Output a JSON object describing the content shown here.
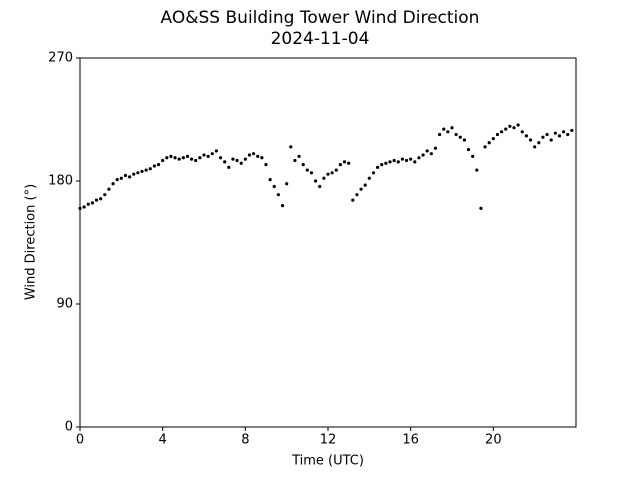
{
  "chart_data": {
    "type": "scatter",
    "title": "AO&SS Building Tower Wind Direction",
    "subtitle": "2024-11-04",
    "x_label": "Time (UTC)",
    "y_label": "Wind Direction (°)",
    "xlim": [
      0,
      24
    ],
    "xticks": [
      0,
      4,
      8,
      12,
      16,
      20
    ],
    "ylim": [
      0,
      270
    ],
    "yticks": [
      0,
      90,
      180,
      270
    ],
    "grid": false,
    "series": [
      {
        "name": "Wind Direction",
        "color": "#000000",
        "x": [
          0,
          0.2,
          0.4,
          0.6,
          0.8,
          1.0,
          1.2,
          1.4,
          1.6,
          1.8,
          2.0,
          2.2,
          2.4,
          2.6,
          2.8,
          3.0,
          3.2,
          3.4,
          3.6,
          3.8,
          4.0,
          4.2,
          4.4,
          4.6,
          4.8,
          5.0,
          5.2,
          5.4,
          5.6,
          5.8,
          6.0,
          6.2,
          6.4,
          6.6,
          6.8,
          7.0,
          7.2,
          7.4,
          7.6,
          7.8,
          8.0,
          8.2,
          8.4,
          8.6,
          8.8,
          9.0,
          9.2,
          9.4,
          9.6,
          9.8,
          10.0,
          10.2,
          10.4,
          10.6,
          10.8,
          11.0,
          11.2,
          11.4,
          11.6,
          11.8,
          12.0,
          12.2,
          12.4,
          12.6,
          12.8,
          13.0,
          13.2,
          13.4,
          13.6,
          13.8,
          14.0,
          14.2,
          14.4,
          14.6,
          14.8,
          15.0,
          15.2,
          15.4,
          15.6,
          15.8,
          16.0,
          16.2,
          16.4,
          16.6,
          16.8,
          17.0,
          17.2,
          17.4,
          17.6,
          17.8,
          18.0,
          18.2,
          18.4,
          18.6,
          18.8,
          19.0,
          19.2,
          19.4,
          19.6,
          19.8,
          20.0,
          20.2,
          20.4,
          20.6,
          20.8,
          21.0,
          21.2,
          21.4,
          21.6,
          21.8,
          22.0,
          22.2,
          22.4,
          22.6,
          22.8,
          23.0,
          23.2,
          23.4,
          23.6,
          23.8
        ],
        "values": [
          160,
          161,
          163,
          164,
          166,
          167,
          170,
          174,
          178,
          181,
          182,
          184,
          183,
          185,
          186,
          187,
          188,
          189,
          191,
          192,
          195,
          197,
          198,
          197,
          196,
          197,
          198,
          196,
          195,
          197,
          199,
          198,
          200,
          202,
          197,
          194,
          190,
          196,
          195,
          193,
          196,
          199,
          200,
          198,
          197,
          192,
          181,
          176,
          170,
          162,
          178,
          205,
          195,
          198,
          192,
          188,
          186,
          180,
          176,
          182,
          185,
          186,
          188,
          192,
          194,
          193,
          166,
          170,
          174,
          177,
          182,
          186,
          190,
          192,
          193,
          194,
          195,
          194,
          196,
          195,
          196,
          194,
          197,
          199,
          202,
          200,
          204,
          214,
          218,
          216,
          219,
          214,
          212,
          210,
          203,
          198,
          188,
          160,
          205,
          208,
          211,
          214,
          216,
          218,
          220,
          219,
          221,
          216,
          213,
          210,
          205,
          208,
          212,
          214,
          210,
          215,
          213,
          216,
          214,
          217
        ]
      }
    ]
  }
}
